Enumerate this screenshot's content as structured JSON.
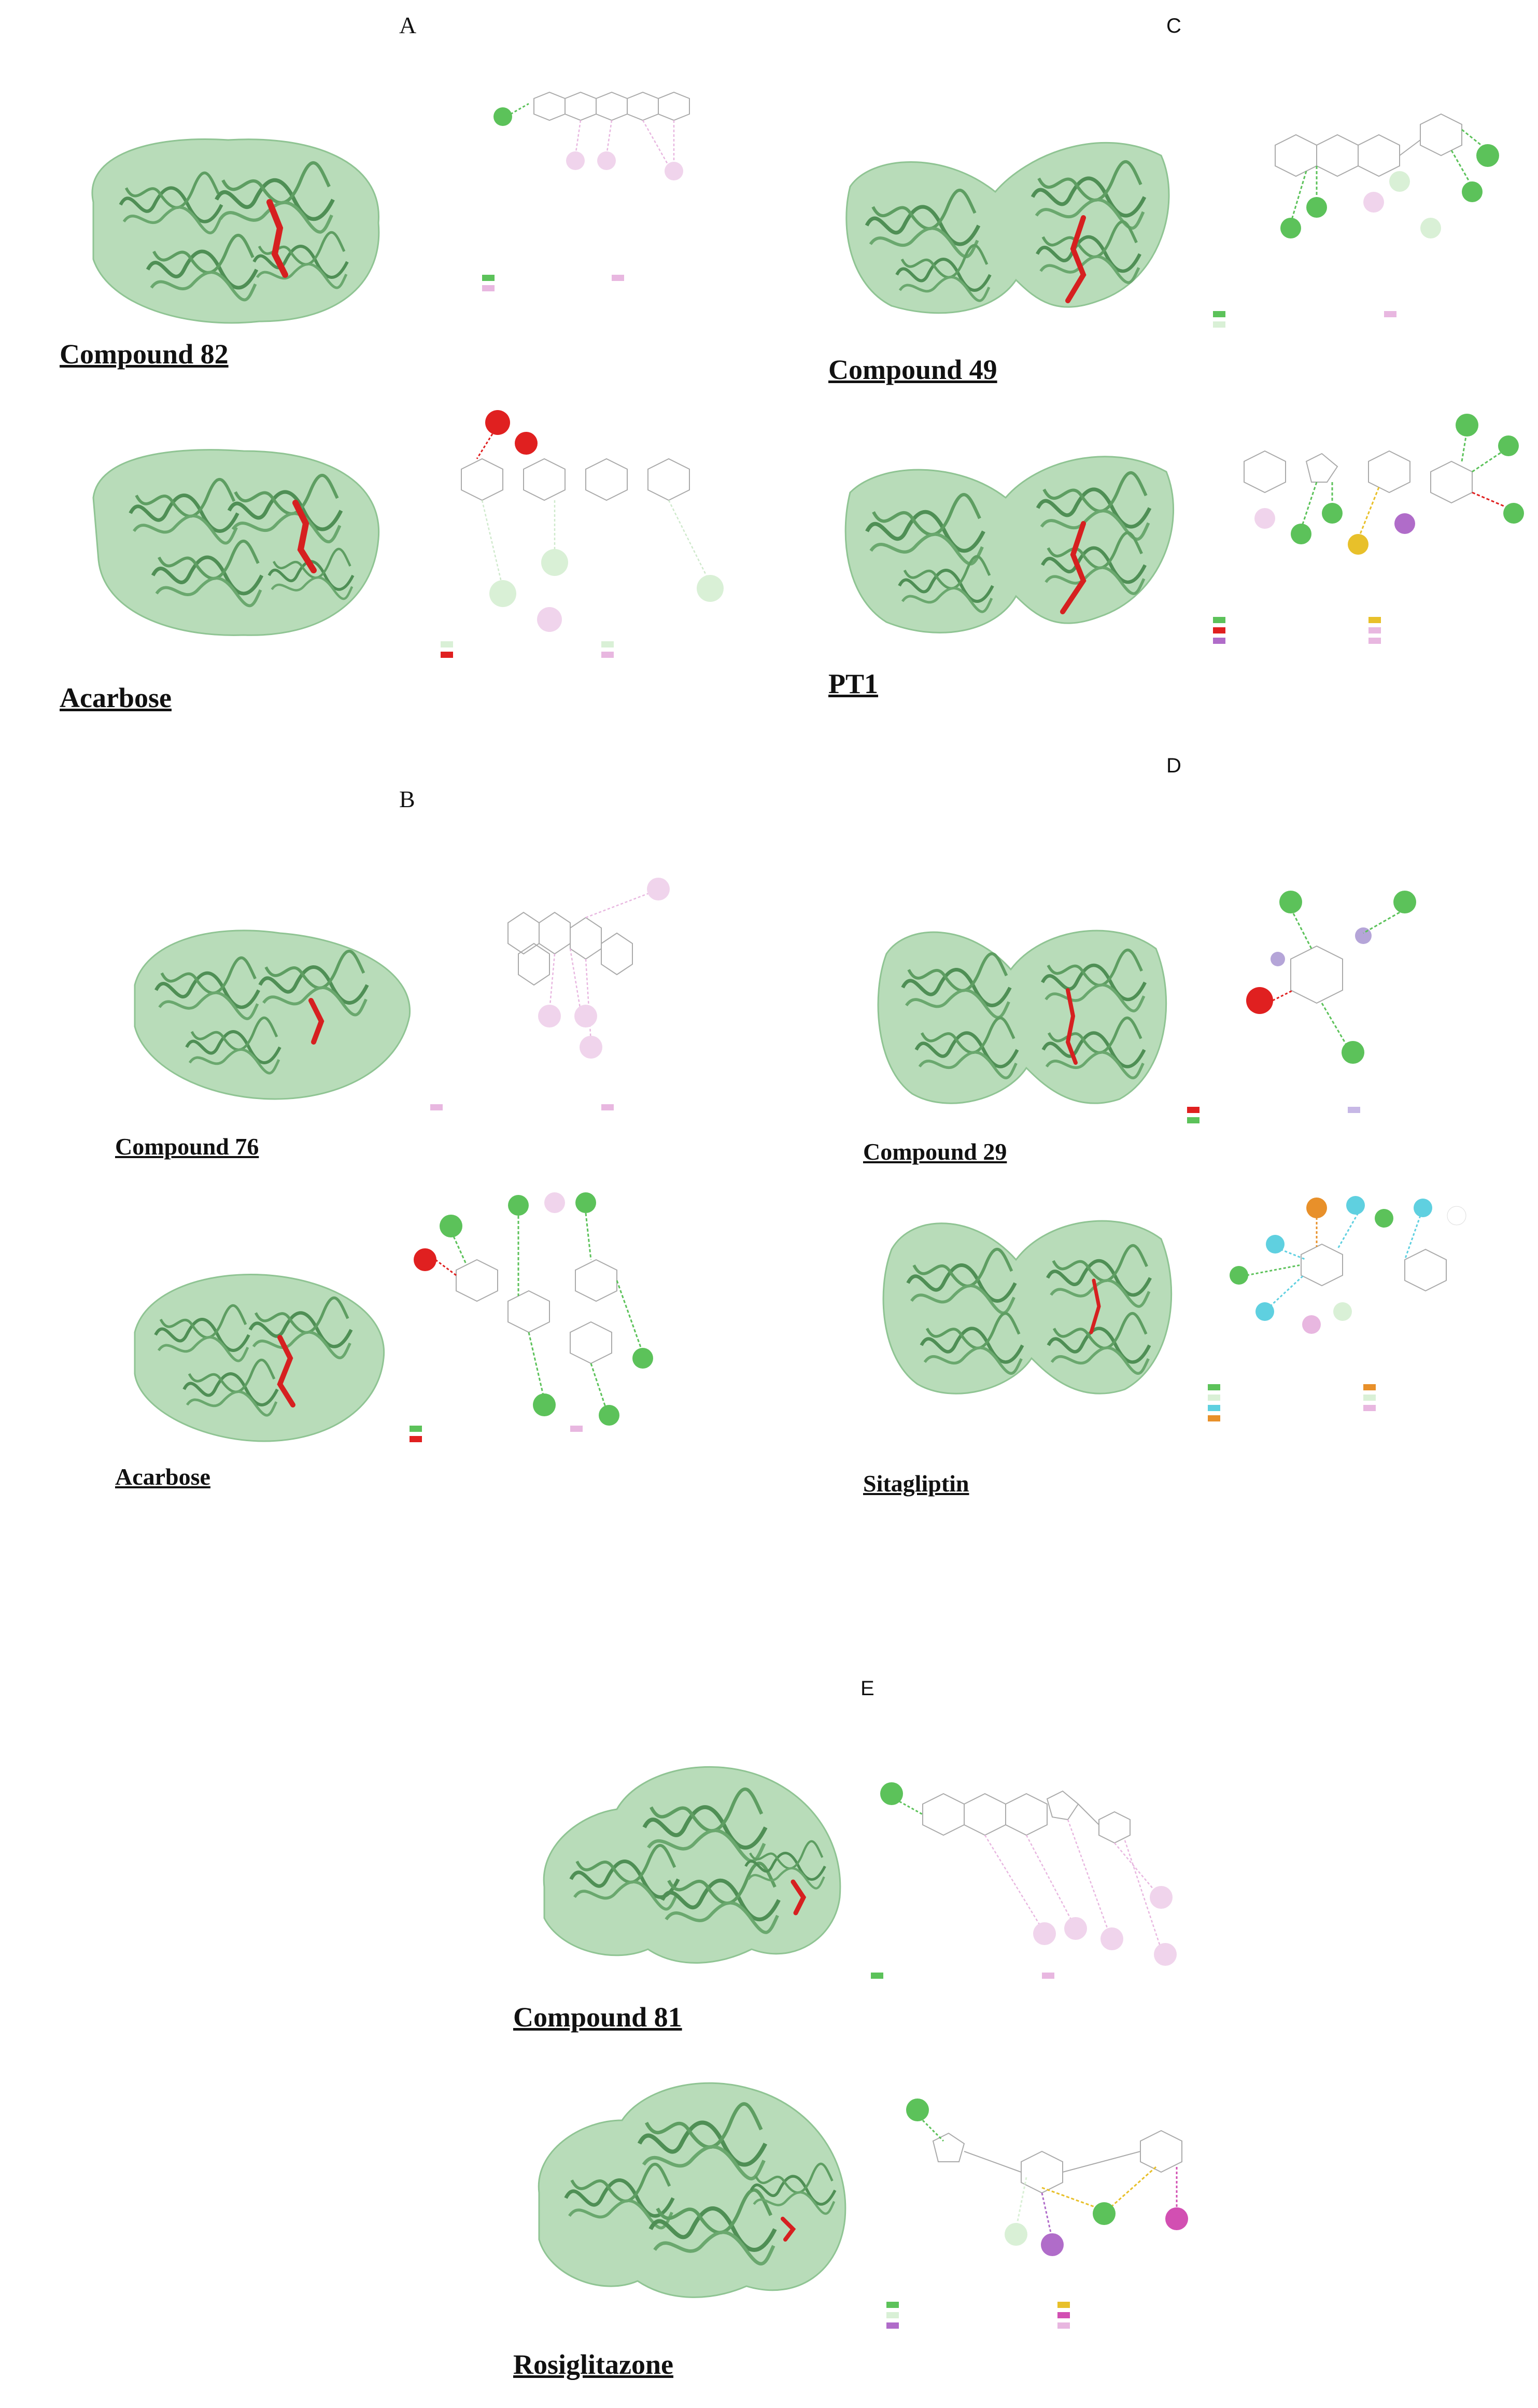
{
  "panels": {
    "A": {
      "letter": "A",
      "top_caption": "Compound 82",
      "bottom_caption": "Acarbose"
    },
    "B": {
      "letter": "B",
      "top_caption": "Compound 76",
      "bottom_caption": "Acarbose"
    },
    "C": {
      "letter": "C",
      "top_caption": "Compound 49",
      "bottom_caption": "PT1"
    },
    "D": {
      "letter": "D",
      "top_caption": "Compound 29",
      "bottom_caption": "Sitagliptin"
    },
    "E": {
      "letter": "E",
      "top_caption": "Compound 81",
      "bottom_caption": "Rosiglitazone"
    }
  },
  "colors": {
    "protein": "#8fc493",
    "protein_dark": "#4f8f55",
    "ligand": "#d62020",
    "hbond": "#5cc25a",
    "alkyl": "#e8b7e0",
    "pi_sigma": "#b06cc9",
    "unfavorable": "#e02020",
    "carbon_hbond": "#d9f0d6",
    "pi_sulfur": "#e8c02a",
    "halogen": "#5fd0e0",
    "pi_cation": "#e8902a"
  }
}
